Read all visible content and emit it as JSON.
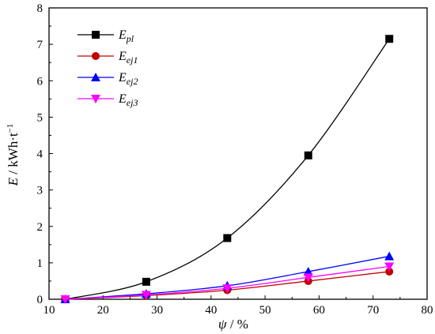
{
  "chart_data": {
    "type": "line",
    "xlabel": {
      "symbol": "ψ",
      "unit": " / %"
    },
    "ylabel": {
      "symbol": "E",
      "unit": " / kWh·t",
      "unit_sup": "−1"
    },
    "xlim": [
      10,
      80
    ],
    "ylim": [
      0,
      8
    ],
    "xticks": [
      10,
      20,
      30,
      40,
      50,
      60,
      70,
      80
    ],
    "yticks": [
      0,
      1,
      2,
      3,
      4,
      5,
      6,
      7,
      8
    ],
    "grid": false,
    "legend_position": "top-left",
    "series": [
      {
        "name": "E",
        "name_sub": "pl",
        "color": "#000000",
        "marker": "square",
        "x": [
          13,
          28,
          43,
          58,
          73
        ],
        "y": [
          0.0,
          0.48,
          1.68,
          3.95,
          7.15
        ]
      },
      {
        "name": "E",
        "name_sub": "ej1",
        "color": "#c00000",
        "marker": "circle",
        "x": [
          13,
          28,
          43,
          58,
          73
        ],
        "y": [
          0.0,
          0.1,
          0.25,
          0.5,
          0.76
        ]
      },
      {
        "name": "E",
        "name_sub": "ej2",
        "color": "#0000ff",
        "marker": "triangle-up",
        "x": [
          13,
          28,
          43,
          58,
          73
        ],
        "y": [
          0.0,
          0.15,
          0.37,
          0.76,
          1.18
        ]
      },
      {
        "name": "E",
        "name_sub": "ej3",
        "color": "#ff00ff",
        "marker": "triangle-down",
        "x": [
          13,
          28,
          43,
          58,
          73
        ],
        "y": [
          0.0,
          0.12,
          0.3,
          0.6,
          0.9
        ]
      }
    ]
  }
}
